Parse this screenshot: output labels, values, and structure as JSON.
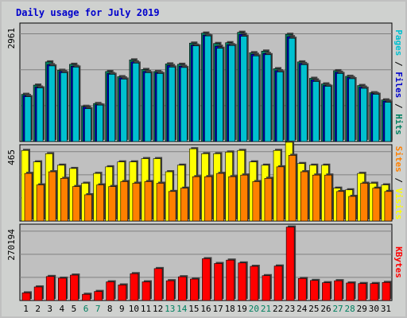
{
  "chart_data": {
    "type": "bar",
    "title": "Daily usage for July 2019",
    "categories": [
      "1",
      "2",
      "3",
      "4",
      "5",
      "6",
      "7",
      "8",
      "9",
      "10",
      "11",
      "12",
      "13",
      "14",
      "15",
      "16",
      "17",
      "18",
      "19",
      "20",
      "21",
      "22",
      "23",
      "24",
      "25",
      "26",
      "27",
      "28",
      "29",
      "30",
      "31"
    ],
    "weekend_days": [
      "6",
      "7",
      "13",
      "14",
      "20",
      "21",
      "27",
      "28"
    ],
    "panels": [
      {
        "max_label": "2961",
        "ymax": 2961,
        "legend": [
          {
            "text": "Pages",
            "color": "#00c0d0"
          },
          {
            "text": " / ",
            "color": "#000000"
          },
          {
            "text": "Files",
            "color": "#0000cc"
          },
          {
            "text": " / ",
            "color": "#000000"
          },
          {
            "text": "Hits",
            "color": "#008060"
          }
        ],
        "series": [
          {
            "name": "Hits",
            "color": "#008060",
            "values": [
              1180,
              1410,
              1990,
              1780,
              1930,
              880,
              950,
              1750,
              1620,
              2040,
              1800,
              1750,
              1940,
              1930,
              2460,
              2710,
              2450,
              2470,
              2730,
              2220,
              2260,
              1820,
              2680,
              1990,
              1580,
              1440,
              1770,
              1630,
              1400,
              1220,
              1040
            ]
          },
          {
            "name": "Files",
            "color": "#0000cc",
            "values": [
              1150,
              1360,
              1920,
              1750,
              1880,
              860,
              920,
              1700,
              1590,
              1990,
              1750,
              1720,
              1900,
              1880,
              2410,
              2660,
              2380,
              2420,
              2680,
              2180,
              2200,
              1770,
              2620,
              1950,
              1540,
              1400,
              1730,
              1600,
              1360,
              1200,
              1010
            ]
          },
          {
            "name": "Pages",
            "color": "#00c0d0",
            "values": [
              1120,
              1340,
              1890,
              1720,
              1860,
              820,
              910,
              1680,
              1560,
              1960,
              1720,
              1700,
              1860,
              1850,
              2390,
              2640,
              2330,
              2400,
              2630,
              2140,
              2170,
              1740,
              2580,
              1920,
              1500,
              1380,
              1700,
              1570,
              1330,
              1180,
              980
            ]
          }
        ]
      },
      {
        "max_label": "465",
        "ymax": 465,
        "legend": [
          {
            "text": "Sites",
            "color": "#ff8000"
          },
          {
            "text": " / ",
            "color": "#000000"
          },
          {
            "text": "Visits",
            "color": "#ffff00"
          }
        ],
        "series": [
          {
            "name": "Visits",
            "color": "#ffff00",
            "values": [
              430,
              360,
              410,
              340,
              320,
              230,
              290,
              330,
              360,
              360,
              380,
              380,
              300,
              340,
              440,
              410,
              410,
              420,
              430,
              360,
              340,
              430,
              480,
              350,
              340,
              340,
              200,
              190,
              290,
              230,
              220
            ]
          },
          {
            "name": "Sites",
            "color": "#ff8000",
            "values": [
              290,
              220,
              300,
              260,
              210,
              160,
              220,
              210,
              240,
              230,
              240,
              230,
              180,
              200,
              270,
              270,
              290,
              270,
              280,
              240,
              260,
              330,
              400,
              300,
              280,
              280,
              180,
              150,
              230,
              200,
              180
            ]
          }
        ]
      },
      {
        "max_label": "270194",
        "ymax": 270194,
        "legend": [
          {
            "text": "KBytes",
            "color": "#ff0000"
          }
        ],
        "series": [
          {
            "name": "KBytes",
            "color": "#ff0000",
            "values": [
              27000,
              48000,
              85000,
              79000,
              90000,
              22000,
              32000,
              66000,
              55000,
              95000,
              66000,
              113000,
              70000,
              84000,
              76000,
              148000,
              131000,
              143000,
              133000,
              121000,
              88000,
              122000,
              260000,
              78000,
              71000,
              63000,
              70000,
              62000,
              60000,
              60000,
              64000
            ]
          }
        ]
      }
    ]
  }
}
